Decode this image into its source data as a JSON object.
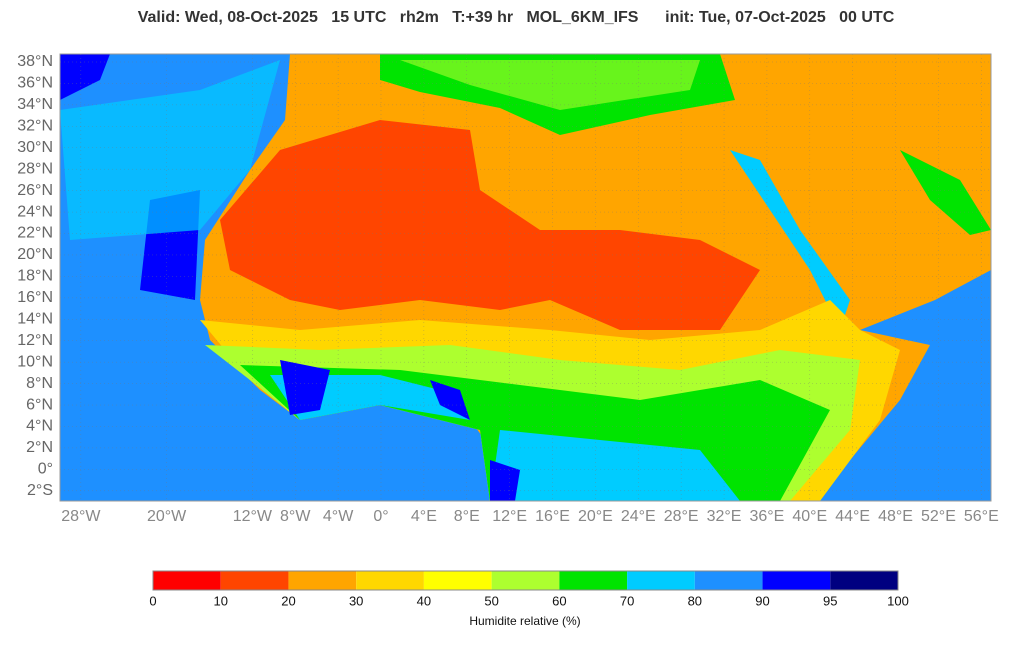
{
  "map": {
    "title": "Valid: Wed, 08-Oct-2025   15 UTC   rh2m   T:+39 hr   MOL_6KM_IFS      init: Tue, 07-Oct-2025   00 UTC",
    "lat_labels": [
      "38°N",
      "36°N",
      "34°N",
      "32°N",
      "30°N",
      "28°N",
      "26°N",
      "24°N",
      "22°N",
      "20°N",
      "18°N",
      "16°N",
      "14°N",
      "12°N",
      "10°N",
      "8°N",
      "6°N",
      "4°N",
      "2°N",
      "0°",
      "2°S"
    ],
    "lon_labels": [
      "28°W",
      "20°W",
      "12°W",
      "8°W",
      "4°W",
      "0°",
      "4°E",
      "8°E",
      "12°E",
      "16°E",
      "20°E",
      "24°E",
      "28°E",
      "32°E",
      "36°E",
      "40°E",
      "44°E",
      "48°E",
      "52°E",
      "56°E"
    ]
  },
  "legend": {
    "ticks": [
      0,
      10,
      20,
      30,
      40,
      50,
      60,
      70,
      80,
      90,
      95,
      100
    ],
    "colors": [
      "#ff0000",
      "#ff4500",
      "#ffa500",
      "#ffd700",
      "#ffff00",
      "#adff2f",
      "#00e400",
      "#00ccff",
      "#1e90ff",
      "#0000ff",
      "#000080"
    ],
    "label": "Humidite relative (%)"
  }
}
